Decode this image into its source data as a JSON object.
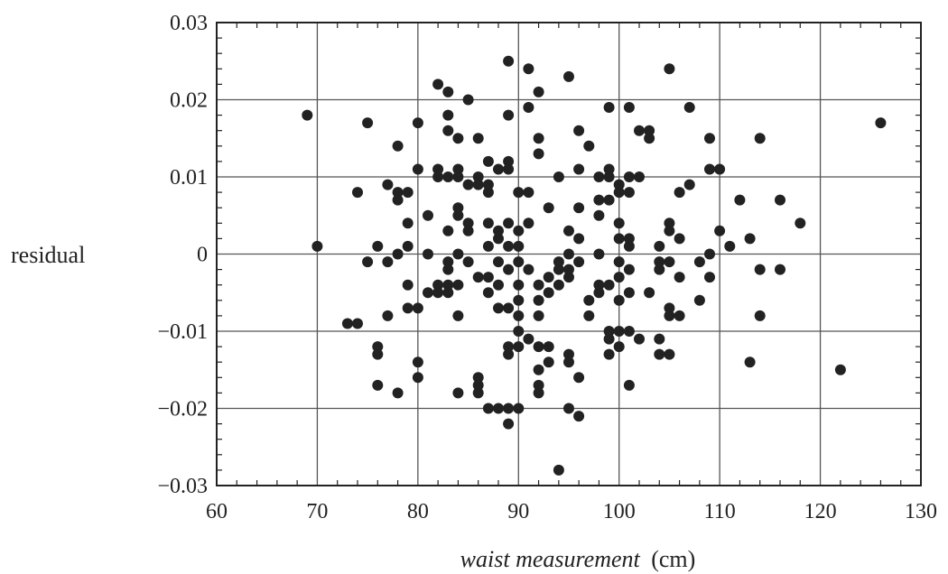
{
  "chart_data": {
    "type": "scatter",
    "title": "",
    "xlabel_italic": "waist measurement",
    "xlabel_unit": "(cm)",
    "ylabel": "residual",
    "xlim": [
      60,
      130
    ],
    "ylim": [
      -0.03,
      0.03
    ],
    "xticks": [
      60,
      70,
      80,
      90,
      100,
      110,
      120,
      130
    ],
    "xtick_labels": [
      "60",
      "70",
      "80",
      "90",
      "100",
      "110",
      "120",
      "130"
    ],
    "yticks": [
      0.03,
      0.02,
      0.01,
      0,
      -0.01,
      -0.02,
      -0.03
    ],
    "ytick_labels": [
      "0.03",
      "0.02",
      "0.01",
      "0",
      "−0.01",
      "−0.02",
      "−0.03"
    ],
    "grid": true,
    "marker_color": "#222222",
    "points": [
      [
        69,
        0.018
      ],
      [
        70,
        0.001
      ],
      [
        73,
        -0.009
      ],
      [
        74,
        -0.009
      ],
      [
        74,
        0.008
      ],
      [
        75,
        0.017
      ],
      [
        75,
        -0.001
      ],
      [
        76,
        0.001
      ],
      [
        76,
        -0.012
      ],
      [
        76,
        -0.013
      ],
      [
        76,
        -0.017
      ],
      [
        77,
        0.009
      ],
      [
        77,
        -0.001
      ],
      [
        77,
        -0.008
      ],
      [
        78,
        0.014
      ],
      [
        78,
        0.007
      ],
      [
        78,
        0.008
      ],
      [
        78,
        0.0
      ],
      [
        78,
        -0.018
      ],
      [
        79,
        0.008
      ],
      [
        79,
        0.004
      ],
      [
        79,
        0.001
      ],
      [
        79,
        -0.004
      ],
      [
        79,
        -0.007
      ],
      [
        80,
        0.017
      ],
      [
        80,
        0.011
      ],
      [
        80,
        -0.007
      ],
      [
        80,
        -0.014
      ],
      [
        80,
        -0.016
      ],
      [
        81,
        0.005
      ],
      [
        81,
        0.0
      ],
      [
        81,
        -0.005
      ],
      [
        82,
        0.022
      ],
      [
        82,
        0.011
      ],
      [
        82,
        0.01
      ],
      [
        82,
        -0.004
      ],
      [
        82,
        -0.005
      ],
      [
        83,
        0.021
      ],
      [
        83,
        0.018
      ],
      [
        83,
        0.016
      ],
      [
        83,
        0.01
      ],
      [
        83,
        0.003
      ],
      [
        83,
        -0.001
      ],
      [
        83,
        -0.004
      ],
      [
        83,
        -0.005
      ],
      [
        83,
        -0.002
      ],
      [
        84,
        0.015
      ],
      [
        84,
        0.011
      ],
      [
        84,
        0.01
      ],
      [
        84,
        0.006
      ],
      [
        84,
        0.005
      ],
      [
        84,
        0.0
      ],
      [
        84,
        -0.004
      ],
      [
        84,
        -0.008
      ],
      [
        84,
        -0.018
      ],
      [
        85,
        0.02
      ],
      [
        85,
        0.009
      ],
      [
        85,
        0.004
      ],
      [
        85,
        0.003
      ],
      [
        85,
        -0.001
      ],
      [
        86,
        0.015
      ],
      [
        86,
        0.01
      ],
      [
        86,
        0.009
      ],
      [
        86,
        -0.003
      ],
      [
        86,
        -0.016
      ],
      [
        86,
        -0.017
      ],
      [
        86,
        -0.018
      ],
      [
        87,
        0.012
      ],
      [
        87,
        0.009
      ],
      [
        87,
        0.008
      ],
      [
        87,
        0.004
      ],
      [
        87,
        0.001
      ],
      [
        87,
        -0.003
      ],
      [
        87,
        -0.005
      ],
      [
        87,
        -0.02
      ],
      [
        88,
        0.011
      ],
      [
        88,
        0.003
      ],
      [
        88,
        0.002
      ],
      [
        88,
        -0.001
      ],
      [
        88,
        -0.004
      ],
      [
        88,
        -0.007
      ],
      [
        88,
        -0.02
      ],
      [
        89,
        0.025
      ],
      [
        89,
        0.018
      ],
      [
        89,
        0.012
      ],
      [
        89,
        0.011
      ],
      [
        89,
        0.004
      ],
      [
        89,
        0.001
      ],
      [
        89,
        -0.002
      ],
      [
        89,
        -0.007
      ],
      [
        89,
        -0.012
      ],
      [
        89,
        -0.013
      ],
      [
        89,
        -0.02
      ],
      [
        89,
        -0.022
      ],
      [
        90,
        0.008
      ],
      [
        90,
        0.003
      ],
      [
        90,
        0.001
      ],
      [
        90,
        -0.001
      ],
      [
        90,
        -0.004
      ],
      [
        90,
        -0.006
      ],
      [
        90,
        -0.008
      ],
      [
        90,
        -0.01
      ],
      [
        90,
        -0.012
      ],
      [
        90,
        -0.02
      ],
      [
        91,
        0.024
      ],
      [
        91,
        0.019
      ],
      [
        91,
        0.008
      ],
      [
        91,
        0.004
      ],
      [
        91,
        -0.002
      ],
      [
        91,
        -0.011
      ],
      [
        92,
        0.021
      ],
      [
        92,
        0.015
      ],
      [
        92,
        0.013
      ],
      [
        92,
        -0.004
      ],
      [
        92,
        -0.006
      ],
      [
        92,
        -0.008
      ],
      [
        92,
        -0.012
      ],
      [
        92,
        -0.015
      ],
      [
        92,
        -0.017
      ],
      [
        92,
        -0.018
      ],
      [
        93,
        0.006
      ],
      [
        93,
        -0.003
      ],
      [
        93,
        -0.005
      ],
      [
        93,
        -0.012
      ],
      [
        93,
        -0.014
      ],
      [
        94,
        0.01
      ],
      [
        94,
        -0.001
      ],
      [
        94,
        -0.002
      ],
      [
        94,
        -0.004
      ],
      [
        94,
        -0.028
      ],
      [
        95,
        0.023
      ],
      [
        95,
        0.003
      ],
      [
        95,
        0.0
      ],
      [
        95,
        -0.002
      ],
      [
        95,
        -0.003
      ],
      [
        95,
        -0.013
      ],
      [
        95,
        -0.014
      ],
      [
        95,
        -0.02
      ],
      [
        96,
        0.016
      ],
      [
        96,
        0.011
      ],
      [
        96,
        0.006
      ],
      [
        96,
        0.002
      ],
      [
        96,
        -0.001
      ],
      [
        96,
        -0.016
      ],
      [
        96,
        -0.021
      ],
      [
        97,
        0.014
      ],
      [
        97,
        -0.006
      ],
      [
        97,
        -0.008
      ],
      [
        98,
        0.01
      ],
      [
        98,
        0.007
      ],
      [
        98,
        0.005
      ],
      [
        98,
        0.0
      ],
      [
        98,
        -0.004
      ],
      [
        98,
        -0.005
      ],
      [
        99,
        0.019
      ],
      [
        99,
        0.011
      ],
      [
        99,
        0.01
      ],
      [
        99,
        0.007
      ],
      [
        99,
        -0.004
      ],
      [
        99,
        -0.01
      ],
      [
        99,
        -0.011
      ],
      [
        99,
        -0.013
      ],
      [
        100,
        0.009
      ],
      [
        100,
        0.008
      ],
      [
        100,
        0.004
      ],
      [
        100,
        0.002
      ],
      [
        100,
        -0.001
      ],
      [
        100,
        -0.003
      ],
      [
        100,
        -0.006
      ],
      [
        100,
        -0.01
      ],
      [
        100,
        -0.012
      ],
      [
        101,
        0.019
      ],
      [
        101,
        0.01
      ],
      [
        101,
        0.008
      ],
      [
        101,
        0.002
      ],
      [
        101,
        0.001
      ],
      [
        101,
        -0.002
      ],
      [
        101,
        -0.005
      ],
      [
        101,
        -0.01
      ],
      [
        101,
        -0.017
      ],
      [
        102,
        0.016
      ],
      [
        102,
        0.01
      ],
      [
        102,
        -0.011
      ],
      [
        103,
        0.016
      ],
      [
        103,
        0.015
      ],
      [
        103,
        -0.005
      ],
      [
        104,
        0.001
      ],
      [
        104,
        -0.001
      ],
      [
        104,
        -0.002
      ],
      [
        104,
        -0.011
      ],
      [
        104,
        -0.013
      ],
      [
        105,
        0.024
      ],
      [
        105,
        0.004
      ],
      [
        105,
        0.003
      ],
      [
        105,
        -0.001
      ],
      [
        105,
        -0.007
      ],
      [
        105,
        -0.008
      ],
      [
        105,
        -0.013
      ],
      [
        106,
        0.008
      ],
      [
        106,
        0.002
      ],
      [
        106,
        -0.003
      ],
      [
        106,
        -0.008
      ],
      [
        107,
        0.019
      ],
      [
        107,
        0.009
      ],
      [
        108,
        -0.001
      ],
      [
        108,
        -0.006
      ],
      [
        109,
        0.015
      ],
      [
        109,
        0.011
      ],
      [
        109,
        0.0
      ],
      [
        109,
        -0.003
      ],
      [
        110,
        0.011
      ],
      [
        110,
        0.003
      ],
      [
        111,
        0.001
      ],
      [
        112,
        0.007
      ],
      [
        113,
        0.002
      ],
      [
        113,
        -0.014
      ],
      [
        114,
        0.015
      ],
      [
        114,
        -0.002
      ],
      [
        114,
        -0.008
      ],
      [
        116,
        0.007
      ],
      [
        116,
        -0.002
      ],
      [
        118,
        0.004
      ],
      [
        122,
        -0.015
      ],
      [
        126,
        0.017
      ]
    ]
  }
}
